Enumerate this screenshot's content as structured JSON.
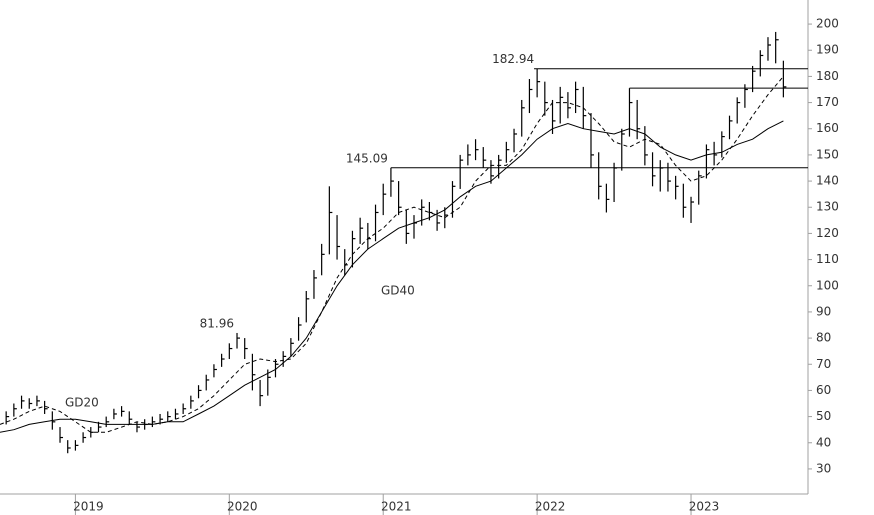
{
  "chart_data": {
    "type": "ohlc",
    "xlim": [
      2018.51,
      2023.76
    ],
    "xticks": [
      2019,
      2020,
      2021,
      2022,
      2023
    ],
    "ylim": [
      20.8,
      209.2
    ],
    "yticks": [
      30,
      40,
      50,
      60,
      70,
      80,
      90,
      100,
      110,
      120,
      130,
      140,
      150,
      160,
      170,
      180,
      190,
      200
    ],
    "color": "#000000",
    "x": [
      2018.55,
      2018.6,
      2018.65,
      2018.7,
      2018.75,
      2018.8,
      2018.85,
      2018.9,
      2018.95,
      2019.0,
      2019.05,
      2019.1,
      2019.15,
      2019.2,
      2019.25,
      2019.3,
      2019.35,
      2019.4,
      2019.45,
      2019.5,
      2019.55,
      2019.6,
      2019.65,
      2019.7,
      2019.75,
      2019.8,
      2019.85,
      2019.9,
      2019.95,
      2020.0,
      2020.05,
      2020.1,
      2020.15,
      2020.2,
      2020.25,
      2020.3,
      2020.35,
      2020.4,
      2020.45,
      2020.5,
      2020.55,
      2020.6,
      2020.65,
      2020.7,
      2020.75,
      2020.8,
      2020.85,
      2020.9,
      2020.95,
      2021.0,
      2021.05,
      2021.1,
      2021.15,
      2021.2,
      2021.25,
      2021.3,
      2021.35,
      2021.4,
      2021.45,
      2021.5,
      2021.55,
      2021.6,
      2021.65,
      2021.7,
      2021.75,
      2021.8,
      2021.85,
      2021.9,
      2021.95,
      2022.0,
      2022.05,
      2022.1,
      2022.15,
      2022.2,
      2022.25,
      2022.3,
      2022.35,
      2022.4,
      2022.45,
      2022.5,
      2022.55,
      2022.6,
      2022.65,
      2022.7,
      2022.75,
      2022.8,
      2022.85,
      2022.9,
      2022.95,
      2023.0,
      2023.05,
      2023.1,
      2023.15,
      2023.2,
      2023.25,
      2023.3,
      2023.35,
      2023.4,
      2023.45,
      2023.5,
      2023.55,
      2023.6
    ],
    "high": [
      52,
      55,
      58,
      57,
      58,
      56,
      52,
      46,
      41,
      41,
      44,
      46,
      48,
      50,
      53,
      54,
      52,
      48,
      49,
      50,
      51,
      52,
      53,
      55,
      58,
      62,
      66,
      70,
      74,
      78,
      81.96,
      80,
      74,
      64,
      68,
      72,
      75,
      80,
      88,
      98,
      106,
      116,
      138,
      127,
      114,
      121,
      126,
      124,
      131,
      139,
      145.09,
      140,
      129,
      127,
      133,
      132,
      129,
      130,
      140,
      150,
      154,
      156,
      153,
      148,
      150,
      155,
      160,
      171,
      179,
      182.94,
      178,
      171,
      176,
      174,
      178,
      176,
      166,
      151,
      139,
      147,
      160,
      175.5,
      171,
      161,
      151,
      148,
      147,
      142,
      139,
      134,
      144,
      154,
      155,
      159,
      165,
      172,
      177,
      184,
      190,
      195,
      197,
      186
    ],
    "low": [
      47,
      50,
      53,
      53,
      54,
      51,
      45,
      40,
      36,
      37,
      40,
      42,
      44,
      46,
      49,
      50,
      47,
      44,
      45,
      46,
      47,
      48,
      49,
      51,
      53,
      57,
      60,
      65,
      69,
      72,
      76,
      72,
      60,
      54,
      58,
      65,
      69,
      73,
      79,
      86,
      95,
      104,
      112,
      110,
      104,
      107,
      116,
      114,
      117,
      127,
      134,
      127,
      116,
      118,
      123,
      125,
      121,
      122,
      126,
      137,
      146,
      148,
      145,
      139,
      141,
      147,
      151,
      157,
      166,
      172,
      165,
      158,
      162,
      164,
      166,
      160,
      145,
      133,
      128,
      132,
      144,
      157,
      156,
      146,
      138,
      136,
      136,
      133,
      126,
      124,
      131,
      141,
      146,
      149,
      156,
      162,
      168,
      174,
      180,
      186,
      185,
      172
    ],
    "close": [
      50,
      53,
      56,
      55,
      56,
      53,
      48,
      42,
      38,
      39,
      42,
      44,
      46,
      48,
      51,
      52,
      49,
      46,
      47,
      48,
      49,
      50,
      51,
      53,
      56,
      60,
      64,
      68,
      72,
      76,
      80,
      76,
      66,
      58,
      65,
      70,
      73,
      78,
      85,
      95,
      103,
      112,
      128,
      115,
      108,
      118,
      122,
      118,
      128,
      135,
      140,
      130,
      120,
      124,
      130,
      128,
      124,
      127,
      138,
      148,
      150,
      152,
      148,
      142,
      148,
      152,
      158,
      168,
      175,
      178,
      170,
      163,
      172,
      168,
      175,
      165,
      150,
      138,
      133,
      145,
      158,
      170,
      160,
      150,
      142,
      145,
      140,
      138,
      130,
      132,
      142,
      152,
      150,
      157,
      163,
      170,
      175,
      182,
      188,
      192,
      194,
      176
    ],
    "lines": [
      {
        "name": "GD20",
        "style": "dashed",
        "x": [
          2018.51,
          2018.6,
          2018.7,
          2018.8,
          2018.9,
          2019.0,
          2019.1,
          2019.2,
          2019.3,
          2019.4,
          2019.5,
          2019.6,
          2019.7,
          2019.8,
          2019.9,
          2020.0,
          2020.1,
          2020.2,
          2020.3,
          2020.4,
          2020.5,
          2020.6,
          2020.7,
          2020.8,
          2020.9,
          2021.0,
          2021.1,
          2021.2,
          2021.3,
          2021.4,
          2021.5,
          2021.6,
          2021.7,
          2021.8,
          2021.9,
          2022.0,
          2022.1,
          2022.2,
          2022.3,
          2022.4,
          2022.5,
          2022.6,
          2022.7,
          2022.8,
          2022.9,
          2023.0,
          2023.1,
          2023.2,
          2023.3,
          2023.4,
          2023.5,
          2023.6
        ],
        "values": [
          47,
          49,
          52,
          54,
          52,
          48,
          44,
          44,
          46,
          48,
          47,
          48,
          50,
          53,
          58,
          64,
          70,
          72,
          71,
          72,
          78,
          90,
          103,
          112,
          118,
          122,
          128,
          130,
          128,
          126,
          130,
          140,
          146,
          146,
          152,
          162,
          170,
          170,
          168,
          162,
          155,
          153,
          156,
          154,
          146,
          140,
          142,
          148,
          156,
          165,
          173,
          180
        ]
      },
      {
        "name": "GD40",
        "style": "solid",
        "x": [
          2018.51,
          2018.6,
          2018.7,
          2018.8,
          2018.9,
          2019.0,
          2019.1,
          2019.2,
          2019.3,
          2019.4,
          2019.5,
          2019.6,
          2019.7,
          2019.8,
          2019.9,
          2020.0,
          2020.1,
          2020.2,
          2020.3,
          2020.4,
          2020.5,
          2020.6,
          2020.7,
          2020.8,
          2020.9,
          2021.0,
          2021.1,
          2021.2,
          2021.3,
          2021.4,
          2021.5,
          2021.6,
          2021.7,
          2021.8,
          2021.9,
          2022.0,
          2022.1,
          2022.2,
          2022.3,
          2022.4,
          2022.5,
          2022.6,
          2022.7,
          2022.8,
          2022.9,
          2023.0,
          2023.1,
          2023.2,
          2023.3,
          2023.4,
          2023.5,
          2023.6
        ],
        "values": [
          44,
          45,
          47,
          48,
          49,
          49,
          48,
          47,
          47,
          47,
          47,
          48,
          48,
          51,
          54,
          58,
          62,
          65,
          68,
          73,
          80,
          90,
          100,
          108,
          114,
          118,
          122,
          124,
          126,
          129,
          134,
          138,
          140,
          145,
          150,
          156,
          160,
          162,
          160,
          159,
          158,
          160,
          158,
          153,
          150,
          148,
          150,
          151,
          154,
          156,
          160,
          163
        ]
      }
    ],
    "levels": [
      {
        "value": 182.94,
        "start": 2021.98
      },
      {
        "value": 175.5,
        "start": 2022.6
      },
      {
        "value": 145.09,
        "start": 2021.05
      }
    ],
    "peak_labels": [
      {
        "x": 2022.0,
        "value": 182.94
      },
      {
        "x": 2021.05,
        "value": 145.09
      },
      {
        "x": 2020.05,
        "value": 81.96
      }
    ]
  }
}
